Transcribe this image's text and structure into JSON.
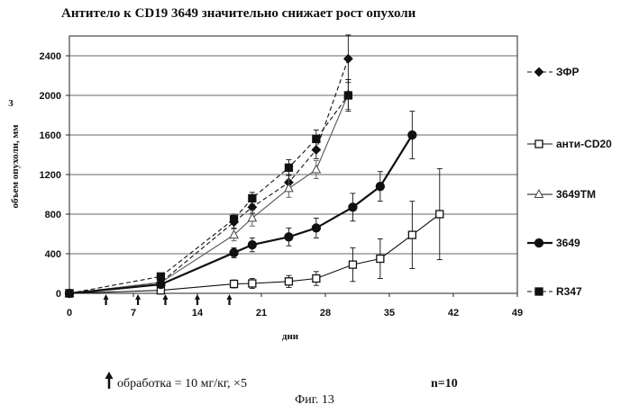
{
  "chart_data": {
    "type": "line",
    "title": "Антитело к CD19 3649 значительно снижает рост опухоли",
    "xlabel": "дни",
    "ylabel": "объем опухоли, мм",
    "ylabel_sup": "3",
    "xlim": [
      0,
      49
    ],
    "ylim": [
      0,
      2600
    ],
    "xticks": [
      0,
      7,
      14,
      21,
      28,
      35,
      42,
      49
    ],
    "yticks": [
      0,
      400,
      800,
      1200,
      1600,
      2000,
      2400
    ],
    "treatment_days": [
      4,
      7.5,
      10.5,
      14,
      17.5
    ],
    "series": [
      {
        "name": "ЗФР",
        "marker": "diamond",
        "style": "dash",
        "x": [
          0,
          10,
          18,
          20,
          24,
          27,
          30.5
        ],
        "y": [
          0,
          110,
          720,
          870,
          1120,
          1450,
          2370
        ],
        "err": [
          0,
          20,
          60,
          60,
          80,
          90,
          240
        ]
      },
      {
        "name": "анти-CD20",
        "marker": "square-open",
        "style": "solid",
        "x": [
          0,
          10,
          18,
          20,
          24,
          27,
          31,
          34,
          37.5,
          40.5
        ],
        "y": [
          0,
          30,
          95,
          100,
          120,
          150,
          290,
          350,
          590,
          800
        ],
        "err": [
          0,
          15,
          40,
          50,
          60,
          70,
          170,
          200,
          340,
          460
        ]
      },
      {
        "name": "3649TM",
        "marker": "triangle-open",
        "style": "solid",
        "x": [
          0,
          10,
          18,
          20,
          24,
          27,
          30.5
        ],
        "y": [
          0,
          110,
          590,
          760,
          1060,
          1250,
          2010
        ],
        "err": [
          0,
          20,
          60,
          80,
          90,
          90,
          150
        ]
      },
      {
        "name": "3649",
        "marker": "circle",
        "style": "solid",
        "x": [
          0,
          10,
          18,
          20,
          24,
          27,
          31,
          34,
          37.5
        ],
        "y": [
          0,
          90,
          410,
          490,
          570,
          660,
          870,
          1080,
          1600
        ],
        "err": [
          0,
          20,
          50,
          70,
          90,
          100,
          140,
          150,
          240
        ]
      },
      {
        "name": "R347",
        "marker": "square",
        "style": "dash",
        "x": [
          0,
          10,
          18,
          20,
          24,
          27,
          30.5
        ],
        "y": [
          0,
          170,
          750,
          960,
          1270,
          1560,
          2000
        ],
        "err": [
          0,
          20,
          50,
          60,
          80,
          90,
          160
        ]
      }
    ]
  },
  "footer": {
    "treatment": "обработка = 10 мг/кг, ×5",
    "n": "n=10",
    "figure": "Фиг. 13"
  }
}
